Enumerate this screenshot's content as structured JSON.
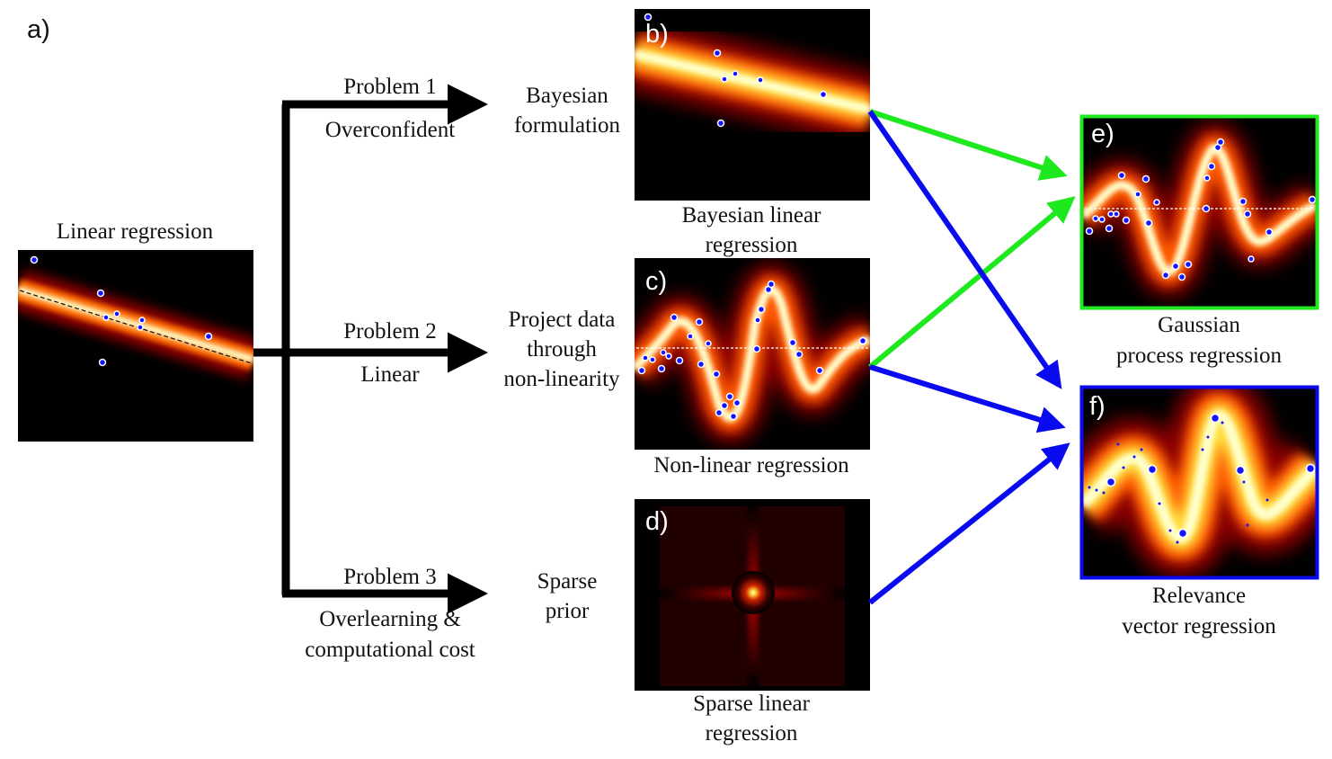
{
  "panel_labels": {
    "a": "a)",
    "b": "b)",
    "c": "c)",
    "d": "d)",
    "e": "e)",
    "f": "f)"
  },
  "linear": {
    "title": "Linear regression"
  },
  "problems": [
    {
      "name": "Problem 1",
      "issue": [
        "Overconfident"
      ],
      "solution": [
        "Bayesian",
        "formulation"
      ]
    },
    {
      "name": "Problem 2",
      "issue": [
        "Linear"
      ],
      "solution": [
        "Project data",
        "through",
        "non-linearity"
      ]
    },
    {
      "name": "Problem 3",
      "issue": [
        "Overlearning &",
        "computational cost"
      ],
      "solution": [
        "Sparse",
        "prior"
      ]
    }
  ],
  "panels": {
    "b": {
      "caption": [
        "Bayesian linear",
        "regression"
      ]
    },
    "c": {
      "caption": [
        "Non-linear regression"
      ]
    },
    "d": {
      "caption": [
        "Sparse linear",
        "regression"
      ]
    },
    "e": {
      "caption": [
        "Gaussian",
        "process regression"
      ]
    },
    "f": {
      "caption": [
        "Relevance",
        "vector regression"
      ]
    }
  },
  "colors": {
    "green_arrow": "#1ee81e",
    "blue_arrow": "#0a0aee",
    "black_arrow": "#000000",
    "background": "#000000",
    "heat_hot": "#ffffcc",
    "heat_mid": "#ff6a00",
    "heat_low": "#8a0000",
    "data_point": "#1414ff"
  }
}
